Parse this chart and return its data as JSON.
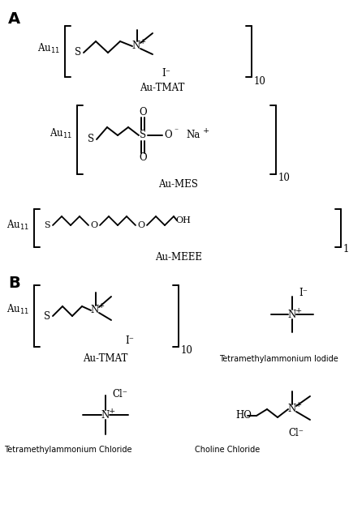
{
  "figsize": [
    4.31,
    6.38
  ],
  "dpi": 100,
  "bg_color": "white",
  "label_A": "A",
  "label_B": "B",
  "title_tmat_A": "Au-TMAT",
  "title_mes_A": "Au-MES",
  "title_meee_A": "Au-MEEE",
  "title_tmat_B": "Au-TMAT",
  "title_tmai": "Tetramethylammonium Iodide",
  "title_tmac": "Tetramethylammonium Chloride",
  "title_cc": "Choline Chloride",
  "lw": 1.4,
  "fs": 8.5,
  "fs_label": 14,
  "fs_sub": 7
}
